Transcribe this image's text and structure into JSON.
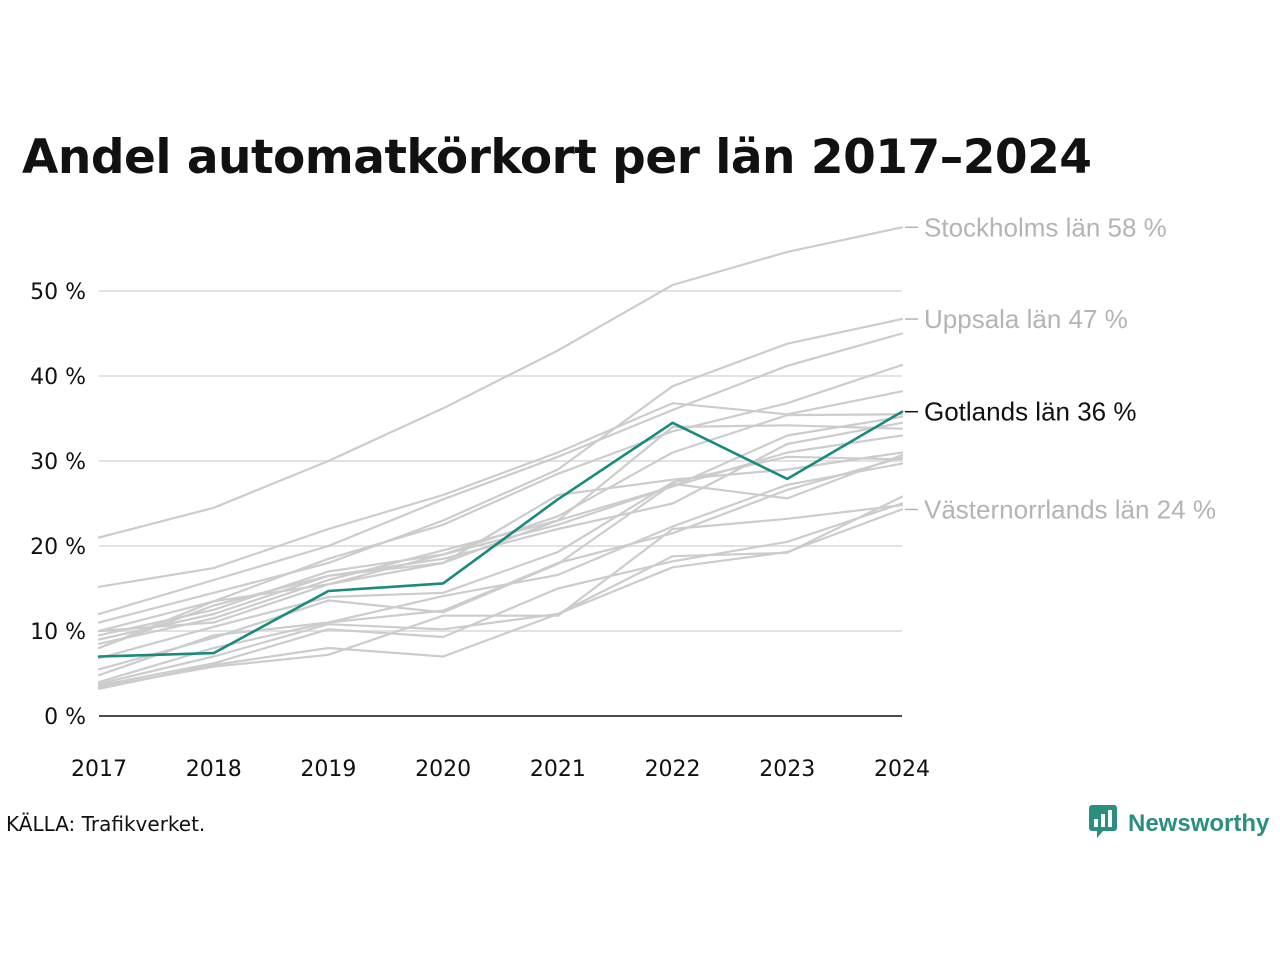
{
  "title": "Andel automatkörkort per län 2017–2024",
  "source": "KÄLLA: Trafikverket.",
  "brand": {
    "name": "Newsworthy",
    "icon": "newsworthy-logo-icon",
    "color": "#2a8f7f"
  },
  "colors": {
    "highlight": "#1a8a7c",
    "background_series": "#cccccc",
    "gridline": "#e2e2e2",
    "axis": "#111111",
    "label_muted": "#b4b4b4",
    "label_highlight": "#111111"
  },
  "chart_data": {
    "type": "line",
    "title": "Andel automatkörkort per län 2017–2024",
    "xlabel": "",
    "ylabel": "",
    "x": [
      "2017",
      "2018",
      "2019",
      "2020",
      "2021",
      "2022",
      "2023",
      "2024"
    ],
    "ylim": [
      0,
      58
    ],
    "yticks": [
      0,
      10,
      20,
      30,
      40,
      50
    ],
    "ytick_labels": [
      "0 %",
      "10 %",
      "20 %",
      "30 %",
      "40 %",
      "50 %"
    ],
    "grid": "horizontal",
    "highlight_series": "Gotlands län",
    "series": [
      {
        "name": "Stockholms län",
        "values": [
          21,
          24.5,
          30,
          36.2,
          43,
          50.7,
          54.6,
          57.5
        ]
      },
      {
        "name": "Uppsala län",
        "values": [
          11,
          14.5,
          18,
          23,
          29,
          38.8,
          43.8,
          46.7
        ]
      },
      {
        "values": [
          12,
          16,
          20,
          25.5,
          30.5,
          36,
          41.2,
          45
        ]
      },
      {
        "values": [
          10,
          13.5,
          18.5,
          22.5,
          28.5,
          33.5,
          36.8,
          41.3
        ]
      },
      {
        "values": [
          15.2,
          17.4,
          22,
          26,
          31,
          36.8,
          35.5,
          38.2
        ]
      },
      {
        "name": "Gotlands län",
        "values": [
          7,
          7.4,
          14.7,
          15.6,
          25.5,
          34.5,
          27.9,
          35.8
        ]
      },
      {
        "values": [
          10,
          11,
          15.5,
          19,
          23.5,
          31,
          35.4,
          35.5
        ]
      },
      {
        "values": [
          9.5,
          12.5,
          17,
          19,
          22.5,
          27,
          33,
          35.2
        ]
      },
      {
        "values": [
          9,
          12,
          16.5,
          18.5,
          22,
          25,
          32,
          34.5
        ]
      },
      {
        "values": [
          8.5,
          11.5,
          16,
          19.5,
          23,
          34,
          34.2,
          33.8
        ]
      },
      {
        "values": [
          8,
          13,
          16.5,
          18,
          23,
          27,
          31,
          33
        ]
      },
      {
        "values": [
          8,
          13.5,
          15.5,
          18,
          26,
          27.8,
          29,
          31
        ]
      },
      {
        "values": [
          6.8,
          10.5,
          14,
          14.5,
          19.3,
          27.5,
          30.5,
          30.2
        ]
      },
      {
        "values": [
          5.5,
          9.2,
          13.6,
          12.2,
          17.9,
          27.3,
          25.6,
          30.7
        ]
      },
      {
        "values": [
          4.8,
          9.5,
          11,
          14.1,
          16.6,
          22.3,
          27.2,
          29.7
        ]
      },
      {
        "values": [
          4,
          8,
          11,
          12.4,
          18,
          21.5,
          26.6,
          30.4
        ]
      },
      {
        "values": [
          3.8,
          7,
          10.8,
          10.2,
          12,
          18.8,
          19.2,
          25.8
        ]
      },
      {
        "values": [
          3.6,
          6.2,
          10.2,
          9.3,
          15,
          18.2,
          20.5,
          25
        ]
      },
      {
        "name": "Västernorrlands län",
        "values": [
          3.2,
          6,
          8,
          7,
          12,
          17.5,
          19.3,
          24.3
        ]
      },
      {
        "values": [
          3.4,
          5.8,
          7.2,
          11.8,
          11.8,
          22,
          23.2,
          24.8
        ]
      }
    ],
    "end_labels": [
      {
        "text": "Stockholms län 58 %",
        "value": 57.5
      },
      {
        "text": "Uppsala län 47 %",
        "value": 46.7
      },
      {
        "text": "Gotlands län 36 %",
        "value": 35.8,
        "highlight": true
      },
      {
        "text": "Västernorrlands län 24 %",
        "value": 24.3
      }
    ]
  }
}
